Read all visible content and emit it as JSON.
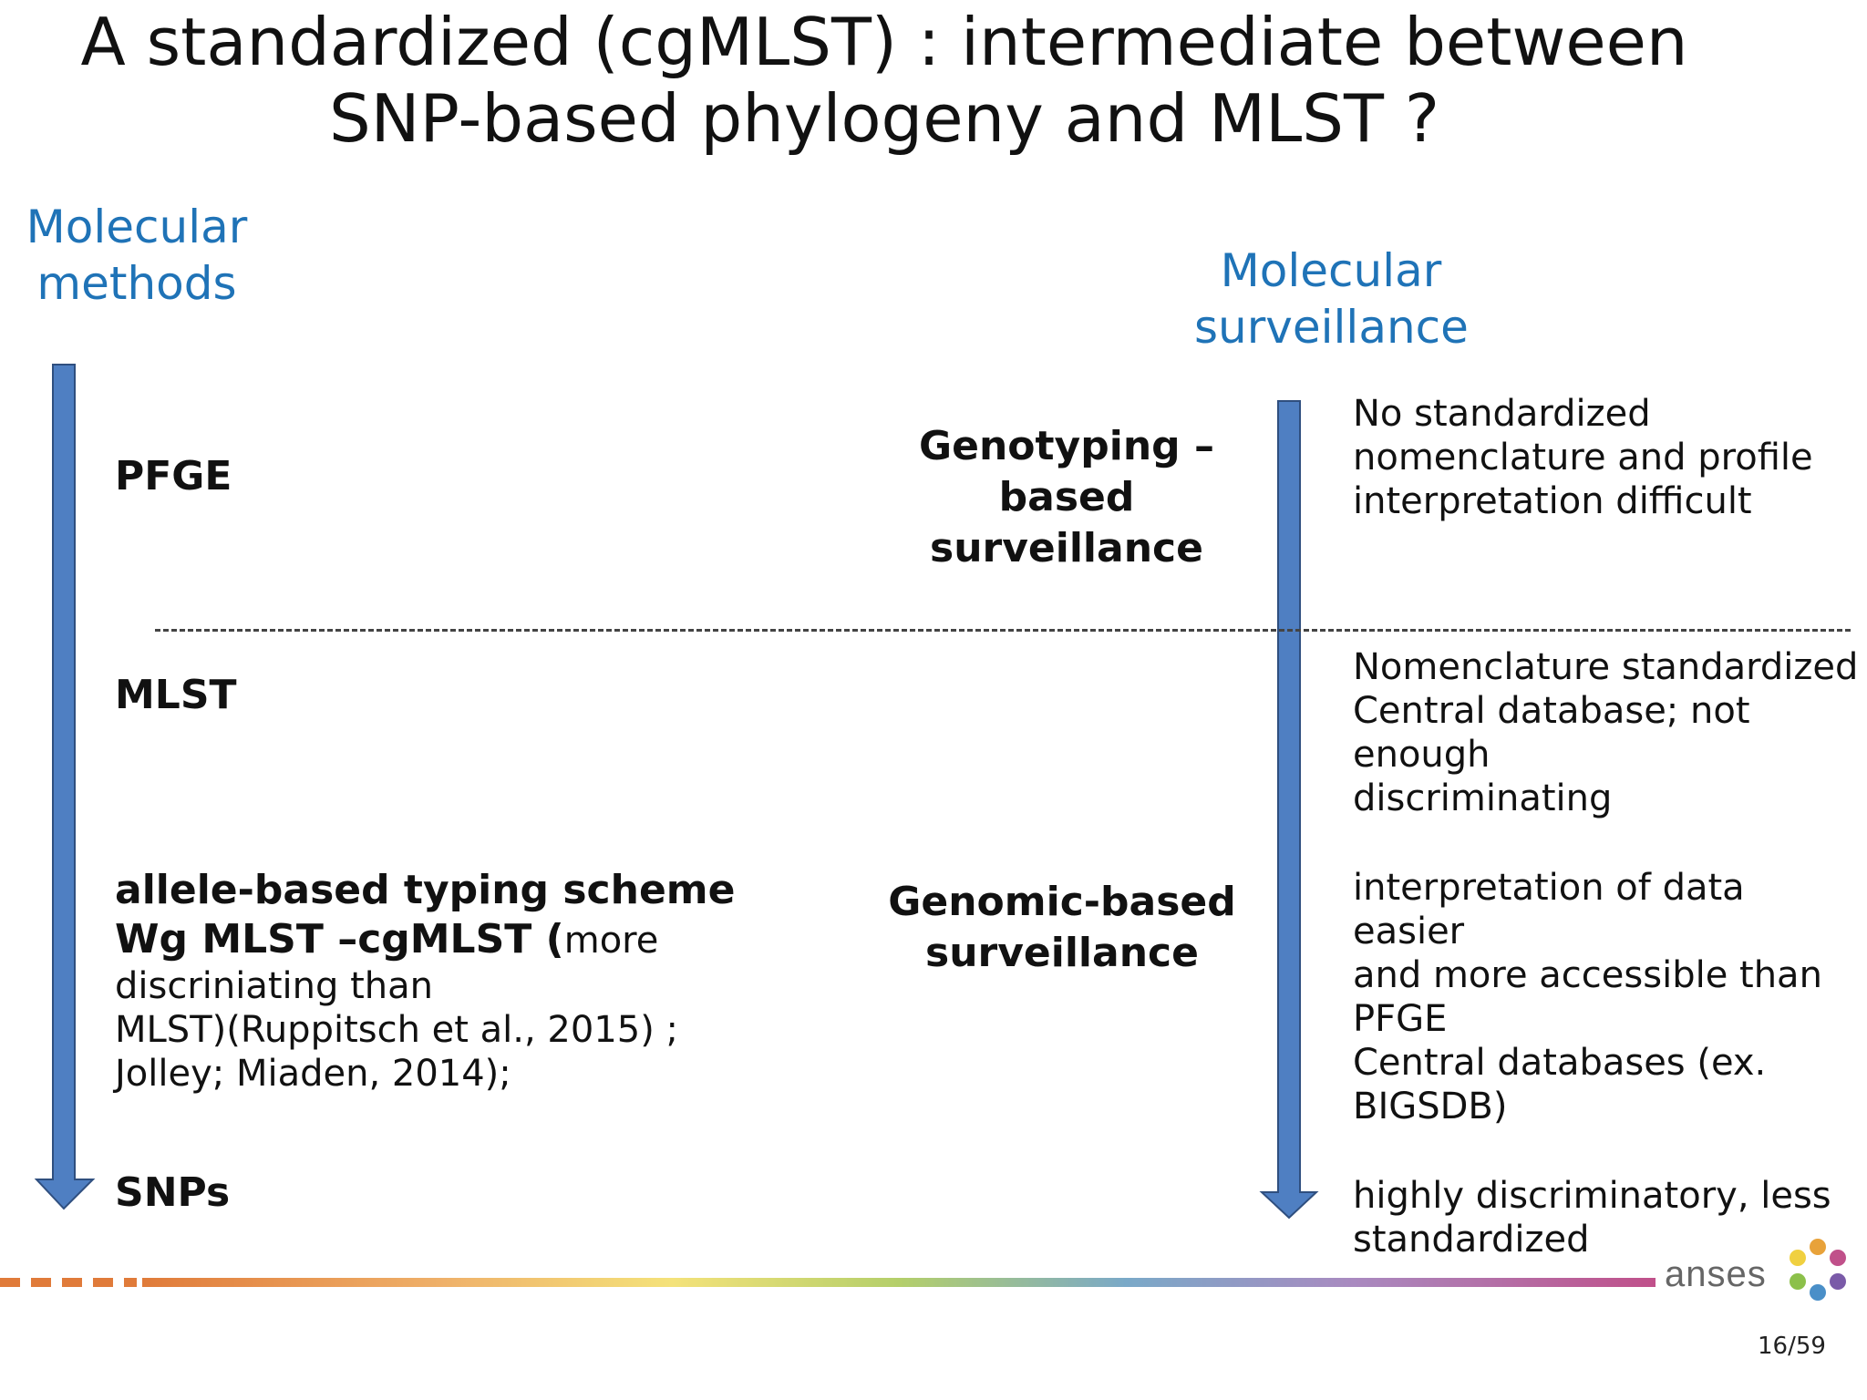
{
  "slide": {
    "title_line1": "A standardized (cgMLST) : intermediate between",
    "title_line2": "SNP-based phylogeny and MLST ?",
    "left_heading_line1": "Molecular",
    "left_heading_line2": "methods",
    "right_heading_line1": "Molecular",
    "right_heading_line2": "surveillance",
    "methods": {
      "pfge": "PFGE",
      "mlst": "MLST",
      "allele_line1": "allele-based typing scheme",
      "allele_line2_bold": "Wg MLST –cgMLST",
      "allele_line2_paren": " (",
      "allele_line2_normal": "more",
      "allele_line3": "discriniating than",
      "allele_line4": "MLST)(Ruppitsch et al., 2015) ;",
      "allele_line5": "Jolley; Miaden, 2014);",
      "snps": "SNPs"
    },
    "surveillance": {
      "genotyping_line1": "Genotyping –based",
      "genotyping_line2": "surveillance",
      "genomic_line1": "Genomic-based",
      "genomic_line2": "surveillance"
    },
    "notes": {
      "pfge_line1": "No standardized",
      "pfge_line2": "nomenclature and profile",
      "pfge_line3": "interpretation difficult",
      "mlst_line1": "Nomenclature standardized",
      "mlst_line2": "Central database; not enough",
      "mlst_line3": "discriminating",
      "cg_line1": "interpretation of data easier",
      "cg_line2": "and more accessible than",
      "cg_line3": "PFGE",
      "cg_line4": "Central databases  (ex.",
      "cg_line5": "BIGSDB)",
      "snp_line1": "highly discriminatory, less",
      "snp_line2": "standardized"
    },
    "logo_text": "anses",
    "page_number": "16/59",
    "colors": {
      "heading_blue": "#1f73b7",
      "arrow_fill": "#4f7fc2",
      "arrow_stroke": "#2f4f7f"
    }
  }
}
